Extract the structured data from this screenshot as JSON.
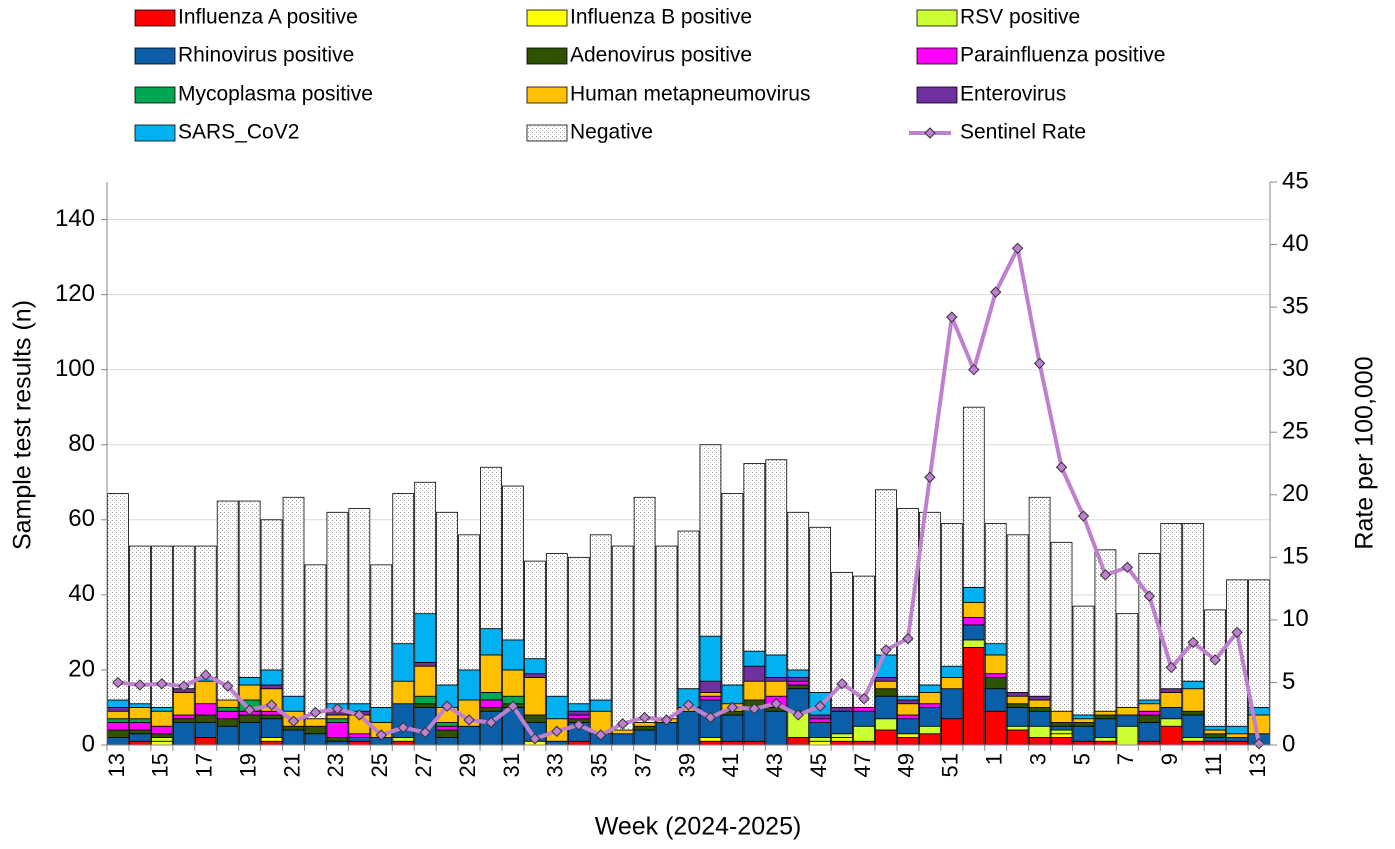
{
  "chart_data": {
    "type": "bar",
    "stacked": true,
    "x_label": "Week (2024-2025)",
    "y_label": "Sample test results (n)",
    "y2_label": "Rate per 100,000",
    "categories": [
      "13",
      null,
      "15",
      null,
      "17",
      null,
      "19",
      null,
      "21",
      null,
      "23",
      null,
      "25",
      null,
      "27",
      null,
      "29",
      null,
      "31",
      null,
      "33",
      null,
      "35",
      null,
      "37",
      null,
      "39",
      null,
      "41",
      null,
      "43",
      null,
      "45",
      null,
      "47",
      null,
      "49",
      null,
      "51",
      null,
      "1",
      null,
      "3",
      null,
      "5",
      null,
      "7",
      null,
      "9",
      null,
      "11",
      null,
      "13"
    ],
    "ylim": [
      0,
      150
    ],
    "yticks": [
      0,
      20,
      40,
      60,
      80,
      100,
      120,
      140
    ],
    "y2lim": [
      0,
      45
    ],
    "y2ticks": [
      0,
      5,
      10,
      15,
      20,
      25,
      30,
      35,
      40,
      45
    ],
    "grid": true,
    "series": [
      {
        "name": "Influenza A positive",
        "color": "#ff0000",
        "values": [
          0,
          1,
          0,
          0,
          2,
          0,
          0,
          1,
          0,
          0,
          0,
          1,
          0,
          1,
          0,
          0,
          0,
          0,
          0,
          0,
          0,
          1,
          0,
          0,
          0,
          0,
          0,
          1,
          1,
          1,
          0,
          2,
          0,
          1,
          1,
          4,
          2,
          3,
          7,
          26,
          9,
          4,
          2,
          2,
          1,
          1,
          0,
          1,
          5,
          1,
          1,
          1,
          0
        ]
      },
      {
        "name": "Influenza B positive",
        "color": "#ffff00",
        "values": [
          0,
          0,
          1,
          0,
          0,
          0,
          0,
          1,
          0,
          0,
          0,
          0,
          0,
          0,
          0,
          0,
          0,
          0,
          0,
          1,
          0,
          0,
          0,
          0,
          0,
          0,
          0,
          1,
          0,
          0,
          0,
          0,
          1,
          1,
          0,
          0,
          1,
          0,
          0,
          0,
          0,
          0,
          0,
          1,
          0,
          0,
          0,
          0,
          0,
          0,
          0,
          0,
          0
        ]
      },
      {
        "name": "RSV positive",
        "color": "#ccff33",
        "values": [
          0,
          0,
          1,
          0,
          0,
          0,
          0,
          0,
          0,
          0,
          0,
          0,
          0,
          1,
          0,
          0,
          0,
          0,
          0,
          0,
          0,
          0,
          0,
          0,
          0,
          0,
          0,
          0,
          0,
          0,
          0,
          7,
          1,
          1,
          4,
          3,
          0,
          2,
          0,
          2,
          0,
          1,
          3,
          1,
          0,
          1,
          5,
          0,
          2,
          1,
          0,
          0,
          0
        ]
      },
      {
        "name": "Rhinovirus positive",
        "color": "#0a5fa8",
        "values": [
          2,
          2,
          0,
          6,
          4,
          5,
          6,
          5,
          4,
          3,
          1,
          1,
          2,
          9,
          10,
          2,
          5,
          9,
          10,
          5,
          1,
          5,
          3,
          3,
          4,
          6,
          9,
          10,
          7,
          9,
          9,
          6,
          4,
          6,
          4,
          6,
          4,
          5,
          8,
          4,
          6,
          5,
          4,
          1,
          4,
          5,
          3,
          5,
          3,
          6,
          1,
          1,
          3
        ]
      },
      {
        "name": "Adenovirus positive",
        "color": "#2f5200",
        "values": [
          2,
          1,
          1,
          1,
          2,
          2,
          2,
          1,
          1,
          2,
          1,
          0,
          0,
          0,
          1,
          2,
          0,
          1,
          1,
          2,
          0,
          1,
          0,
          0,
          1,
          0,
          0,
          0,
          1,
          2,
          1,
          1,
          0,
          0,
          0,
          2,
          0,
          0,
          0,
          0,
          3,
          1,
          1,
          1,
          1,
          1,
          0,
          2,
          0,
          1,
          1,
          0,
          0
        ]
      },
      {
        "name": "Parainfluenza positive",
        "color": "#ff00ff",
        "values": [
          2,
          2,
          2,
          1,
          3,
          2,
          1,
          1,
          0,
          0,
          4,
          1,
          0,
          0,
          0,
          1,
          0,
          2,
          0,
          0,
          0,
          1,
          0,
          0,
          0,
          0,
          0,
          1,
          0,
          0,
          3,
          1,
          1,
          0,
          1,
          0,
          1,
          1,
          0,
          2,
          1,
          0,
          0,
          0,
          0,
          0,
          0,
          1,
          0,
          0,
          0,
          0,
          0
        ]
      },
      {
        "name": "Mycoplasma positive",
        "color": "#00a651",
        "values": [
          1,
          1,
          0,
          0,
          0,
          1,
          3,
          0,
          0,
          0,
          1,
          0,
          0,
          0,
          2,
          1,
          0,
          2,
          2,
          0,
          0,
          0,
          0,
          0,
          0,
          0,
          0,
          0,
          0,
          0,
          0,
          0,
          0,
          0,
          0,
          0,
          0,
          0,
          0,
          0,
          0,
          0,
          0,
          0,
          0,
          0,
          0,
          0,
          0,
          0,
          0,
          0,
          0
        ]
      },
      {
        "name": "Human metapneumovirus",
        "color": "#ffc000",
        "values": [
          2,
          3,
          4,
          6,
          6,
          2,
          4,
          6,
          4,
          2,
          1,
          5,
          4,
          6,
          8,
          4,
          7,
          10,
          7,
          10,
          6,
          0,
          6,
          1,
          1,
          1,
          1,
          1,
          2,
          5,
          4,
          0,
          0,
          0,
          0,
          2,
          3,
          3,
          3,
          4,
          5,
          2,
          2,
          3,
          1,
          1,
          2,
          2,
          4,
          6,
          1,
          1,
          5
        ]
      },
      {
        "name": "Enterovirus",
        "color": "#7030a0",
        "values": [
          1,
          0,
          0,
          1,
          0,
          0,
          0,
          1,
          0,
          0,
          1,
          1,
          0,
          0,
          1,
          0,
          0,
          0,
          0,
          1,
          0,
          1,
          0,
          0,
          0,
          0,
          0,
          3,
          0,
          4,
          1,
          1,
          1,
          1,
          0,
          1,
          1,
          0,
          0,
          0,
          0,
          1,
          1,
          0,
          0,
          0,
          0,
          0,
          1,
          0,
          0,
          0,
          0
        ]
      },
      {
        "name": "SARS_CoV2",
        "color": "#00b0f0",
        "values": [
          2,
          1,
          1,
          0,
          1,
          0,
          2,
          4,
          4,
          0,
          2,
          2,
          4,
          10,
          13,
          6,
          8,
          7,
          8,
          4,
          6,
          2,
          3,
          0,
          0,
          0,
          5,
          12,
          5,
          4,
          6,
          2,
          6,
          0,
          0,
          6,
          1,
          2,
          3,
          4,
          3,
          0,
          0,
          0,
          1,
          0,
          0,
          1,
          0,
          2,
          1,
          2,
          2
        ]
      },
      {
        "name": "Negative",
        "color": "#ffffff",
        "pattern": "dots",
        "values": [
          55,
          42,
          43,
          38,
          35,
          53,
          47,
          40,
          53,
          41,
          51,
          52,
          38,
          40,
          35,
          46,
          36,
          43,
          41,
          26,
          38,
          39,
          44,
          49,
          60,
          46,
          42,
          51,
          51,
          50,
          52,
          42,
          44,
          36,
          35,
          44,
          50,
          46,
          38,
          48,
          32,
          42,
          53,
          45,
          29,
          43,
          25,
          39,
          44,
          42,
          31,
          39,
          34
        ]
      },
      {
        "name": "Sentinel Rate",
        "color": "#c080d0",
        "type": "line",
        "axis": "y2",
        "values": [
          5.0,
          4.8,
          4.9,
          4.7,
          5.6,
          4.7,
          2.8,
          3.2,
          1.9,
          2.6,
          2.9,
          2.4,
          0.8,
          1.4,
          1.0,
          3.1,
          2.0,
          1.8,
          3.1,
          0.5,
          1.1,
          1.6,
          0.8,
          1.7,
          2.2,
          2.0,
          3.2,
          2.2,
          3.0,
          2.9,
          3.3,
          2.4,
          3.1,
          4.9,
          3.7,
          7.6,
          8.5,
          21.4,
          34.2,
          30.0,
          36.2,
          39.7,
          30.5,
          22.2,
          18.3,
          13.6,
          14.2,
          11.9,
          6.2,
          8.2,
          6.8,
          9.0,
          0.1
        ]
      }
    ]
  }
}
